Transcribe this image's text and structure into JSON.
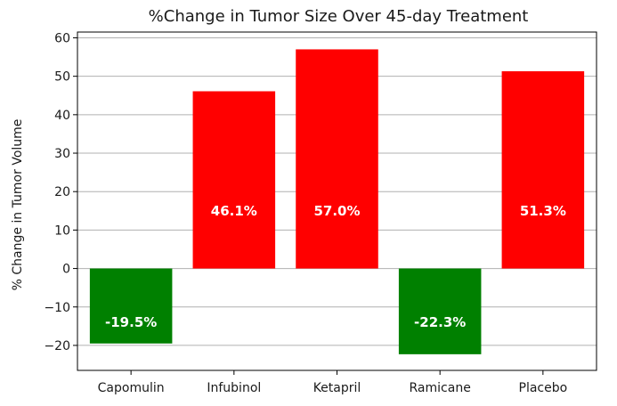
{
  "chart_data": {
    "type": "bar",
    "title": "%Change in Tumor Size Over 45-day Treatment",
    "xlabel": "",
    "ylabel": "% Change in Tumor Volume",
    "categories": [
      "Capomulin",
      "Infubinol",
      "Ketapril",
      "Ramicane",
      "Placebo"
    ],
    "values": [
      -19.5,
      46.1,
      57.0,
      -22.3,
      51.3
    ],
    "data_labels": [
      "-19.5%",
      "46.1%",
      "57.0%",
      "-22.3%",
      "51.3%"
    ],
    "ylim": [
      -26.5,
      61.5
    ],
    "yticks": [
      -20,
      -10,
      0,
      10,
      20,
      30,
      40,
      50,
      60
    ],
    "ytick_labels": [
      "−20",
      "−10",
      "0",
      "10",
      "20",
      "30",
      "40",
      "50",
      "60"
    ],
    "grid": "horizontal",
    "colors": {
      "positive": "#ff0000",
      "negative": "#008000",
      "grid": "#b0b0b0",
      "axis": "#000000",
      "label_text": "#ffffff"
    }
  }
}
